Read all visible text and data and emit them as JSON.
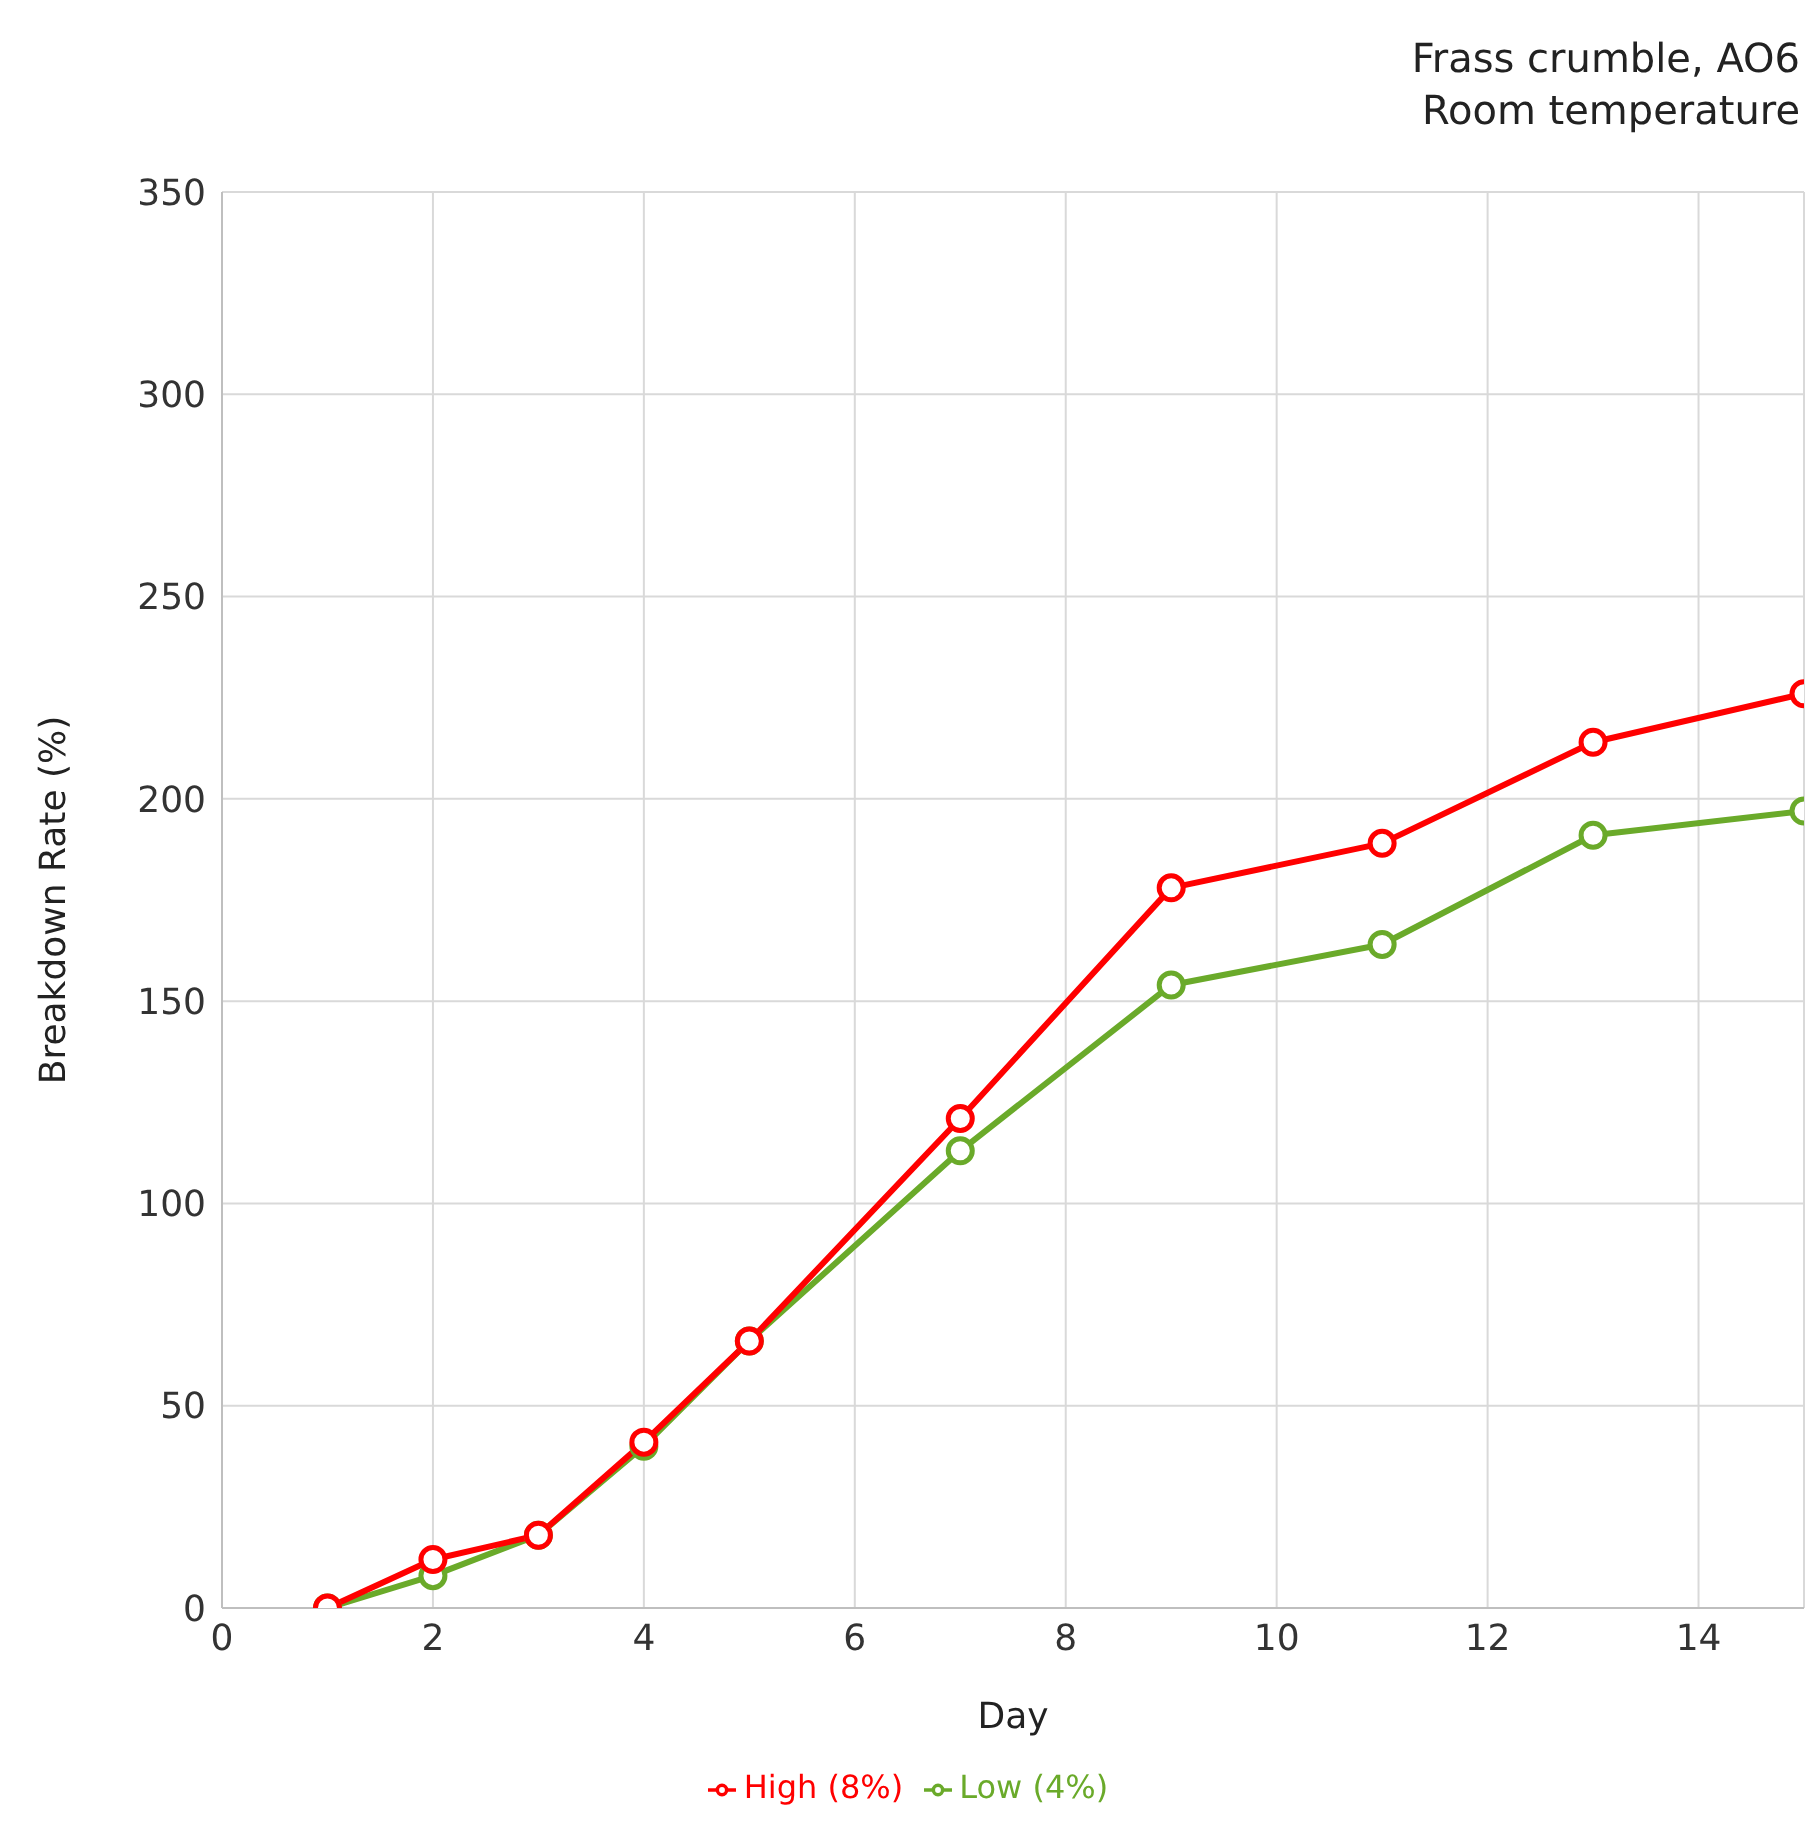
{
  "chart_data": {
    "type": "line",
    "title": "Frass crumble, AO6",
    "subtitle": "Room temperature",
    "xlabel": "Day",
    "ylabel": "Breakdown Rate (%)",
    "x": [
      1,
      2,
      3,
      4,
      5,
      7,
      9,
      11,
      13,
      15
    ],
    "series": [
      {
        "name": "Low (4%)",
        "color": "#6aaa2a",
        "values": [
          0,
          8,
          18,
          40,
          66,
          113,
          154,
          164,
          191,
          197
        ]
      },
      {
        "name": "High (8%)",
        "color": "#ff0000",
        "values": [
          0,
          12,
          18,
          41,
          66,
          121,
          178,
          189,
          214,
          226
        ]
      }
    ],
    "xlim": [
      0,
      15
    ],
    "xticks": [
      0,
      2,
      4,
      6,
      8,
      10,
      12,
      14
    ],
    "ylim": [
      0,
      350
    ],
    "yticks": [
      0,
      50,
      100,
      150,
      200,
      250,
      300,
      350
    ],
    "grid": true,
    "legend": "bottom",
    "marker": "circle",
    "line_style": "solid"
  }
}
